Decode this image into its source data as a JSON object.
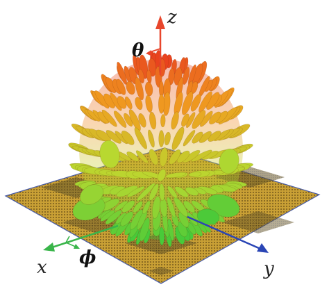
{
  "labels": {
    "z": "z",
    "theta": "θ",
    "x": "x",
    "phi": "ϕ",
    "y": "y"
  },
  "colors": {
    "plate": "#c59a2c",
    "plate_dark": "#5a4a1e",
    "plate_edge": "#4a5da8",
    "z_axis": "#e8462c",
    "x_axis": "#39b54a",
    "y_axis": "#2a45b5",
    "lobe_top": "#e8381e",
    "lobe_mid": "#f0a020",
    "lobe_low": "#b8d830",
    "lobe_base": "#3cc83a"
  },
  "icons": {
    "pattern": "radiation-pattern-icon"
  }
}
